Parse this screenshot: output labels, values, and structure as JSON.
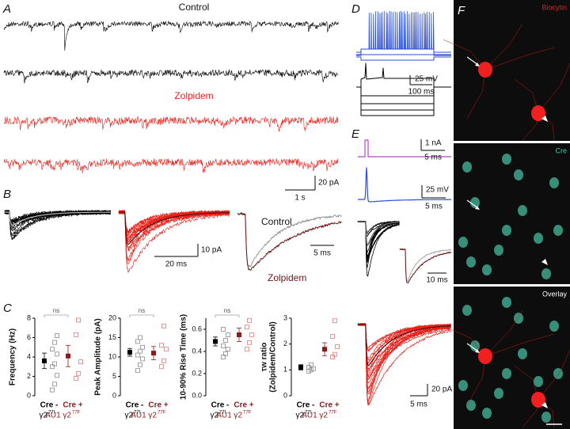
{
  "panels": {
    "a": {
      "letter": "A",
      "trace_labels": [
        "Control",
        "Zolpidem"
      ],
      "scalebar": {
        "y": "20 pA",
        "x": "1 s"
      }
    },
    "b": {
      "letter": "B",
      "scalebar": {
        "y": "10 pA",
        "x": "20 ms"
      },
      "overlay_labels": [
        "Control",
        "Zolpidem"
      ],
      "overlay_scalebar": "5 ms"
    },
    "c": {
      "letter": "C"
    },
    "d": {
      "letter": "D",
      "scalebar": {
        "y": "25 mV",
        "x": "100 ms"
      }
    },
    "e": {
      "letter": "E",
      "stim_scalebar": {
        "y": "1 nA",
        "x": "5 ms"
      },
      "voltage_scalebar": {
        "y": "25 mV",
        "x": "5 ms"
      },
      "inset_scalebar": "10 ms",
      "current_scalebar": {
        "y": "20 pA",
        "x": "5 ms"
      }
    },
    "f": {
      "letter": "F",
      "image_labels": [
        "Biocytin",
        "Cre",
        "Overlay"
      ]
    }
  },
  "chart_data": [
    {
      "type": "scatter",
      "ylabel": "Frequency (Hz)",
      "categories": [
        "Cre -",
        "Cre +"
      ],
      "category_sublabels": [
        "γ2",
        "AU1 γ2"
      ],
      "category_superscripts": [
        "77I",
        "77F"
      ],
      "colors": [
        "#000000",
        "#8e1b1b"
      ],
      "point_colors": [
        "#8a8a8a",
        "#e07a7a"
      ],
      "ylim": [
        0,
        8
      ],
      "yticks": [
        0,
        2,
        4,
        6,
        8
      ],
      "values": [
        3.6,
        4.1
      ],
      "errors": [
        0.8,
        1.1
      ],
      "points": [
        [
          0.6,
          1.2,
          2.1,
          3.0,
          3.3,
          4.3,
          4.8,
          5.5,
          6.2
        ],
        [
          1.8,
          2.3,
          3.5,
          6.3,
          7.8
        ]
      ],
      "ns_label": "ns"
    },
    {
      "type": "scatter",
      "ylabel": "Peak Amplitude (pA)",
      "categories": [
        "Cre -",
        "Cre +"
      ],
      "category_sublabels": [
        "γ2",
        "AU1 γ2"
      ],
      "category_superscripts": [
        "77I",
        "77F"
      ],
      "colors": [
        "#000000",
        "#8e1b1b"
      ],
      "point_colors": [
        "#8a8a8a",
        "#e07a7a"
      ],
      "ylim": [
        0,
        20
      ],
      "yticks": [
        0,
        5,
        10,
        15,
        20
      ],
      "values": [
        11.2,
        11.0
      ],
      "errors": [
        1.0,
        1.7
      ],
      "points": [
        [
          6.5,
          8,
          9.5,
          10.5,
          11.5,
          12.5,
          14,
          15
        ],
        [
          7.5,
          9,
          12,
          13,
          18
        ]
      ],
      "ns_label": "ns"
    },
    {
      "type": "scatter",
      "ylabel": "10-90% Rise Time (ms)",
      "categories": [
        "Cre -",
        "Cre +"
      ],
      "category_sublabels": [
        "γ2",
        "AU1 γ2"
      ],
      "category_superscripts": [
        "77I",
        "77F"
      ],
      "colors": [
        "#000000",
        "#8e1b1b"
      ],
      "point_colors": [
        "#8a8a8a",
        "#e07a7a"
      ],
      "ylim": [
        0,
        0.7
      ],
      "yticks": [
        {
          "value": 0,
          "label": "0.0"
        },
        0.2,
        0.4,
        0.6
      ],
      "values": [
        0.49,
        0.55
      ],
      "errors": [
        0.04,
        0.06
      ],
      "points": [
        [
          0.35,
          0.38,
          0.42,
          0.45,
          0.5,
          0.55,
          0.6
        ],
        [
          0.42,
          0.48,
          0.55,
          0.62,
          0.68
        ]
      ],
      "ns_label": "ns"
    },
    {
      "type": "scatter",
      "ylabel": "τw ratio",
      "ylabel2": "(Zolpidem/Control)",
      "categories": [
        "Cre -",
        "Cre +"
      ],
      "category_sublabels": [
        "γ2",
        "AU1 γ2"
      ],
      "category_superscripts": [
        "77I",
        "77F"
      ],
      "colors": [
        "#000000",
        "#8e1b1b"
      ],
      "point_colors": [
        "#8a8a8a",
        "#e07a7a"
      ],
      "ylim": [
        0,
        3
      ],
      "yticks": [
        0,
        1,
        2,
        3
      ],
      "values": [
        1.1,
        1.8
      ],
      "errors": [
        0.1,
        0.25
      ],
      "points": [
        [
          0.95,
          1.0,
          1.05,
          1.1,
          1.2
        ],
        [
          1.5,
          1.6,
          1.9,
          2.3,
          2.9
        ]
      ]
    }
  ]
}
